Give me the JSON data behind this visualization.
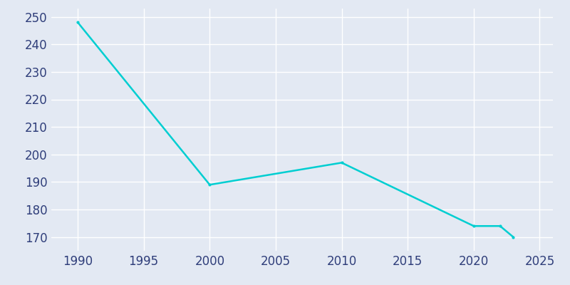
{
  "years": [
    1990,
    2000,
    2010,
    2020,
    2022,
    2023
  ],
  "population": [
    248,
    189,
    197,
    174,
    174,
    170
  ],
  "line_color": "#00CED1",
  "marker_style": "o",
  "marker_size": 3,
  "line_width": 1.8,
  "background_color": "#E3E9F3",
  "grid_color": "#FFFFFF",
  "tick_label_color": "#2F3E7A",
  "xlim": [
    1988,
    2026
  ],
  "ylim": [
    165,
    253
  ],
  "xticks": [
    1990,
    1995,
    2000,
    2005,
    2010,
    2015,
    2020,
    2025
  ],
  "yticks": [
    170,
    180,
    190,
    200,
    210,
    220,
    230,
    240,
    250
  ],
  "tick_fontsize": 12
}
